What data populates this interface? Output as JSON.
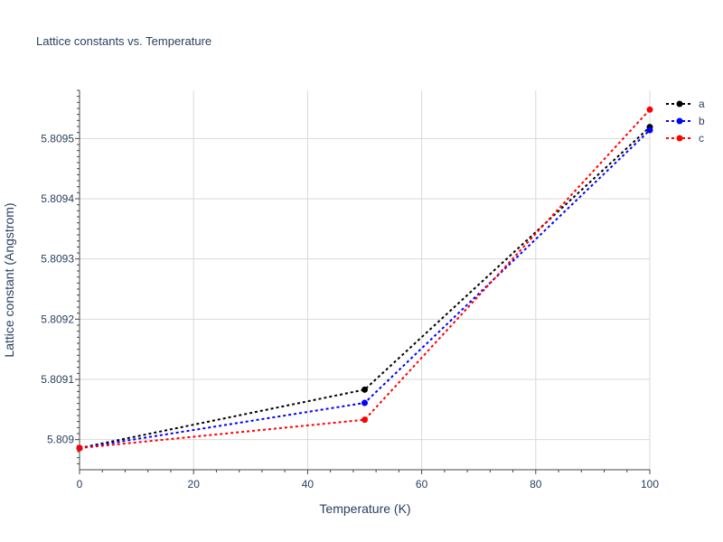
{
  "chart_data": {
    "type": "line",
    "title": "Lattice constants vs. Temperature",
    "xlabel": "Temperature (K)",
    "ylabel": "Lattice constant (Angstrom)",
    "x": [
      0,
      50,
      100
    ],
    "xlim": [
      0,
      100
    ],
    "ylim": [
      5.80895,
      5.80958
    ],
    "xticks": [
      0,
      20,
      40,
      60,
      80,
      100
    ],
    "xtick_labels": [
      "0",
      "20",
      "40",
      "60",
      "80",
      "100"
    ],
    "yticks": [
      5.809,
      5.8091,
      5.8092,
      5.8093,
      5.8094,
      5.8095
    ],
    "ytick_labels": [
      "5.809",
      "5.8091",
      "5.8092",
      "5.8093",
      "5.8094",
      "5.8095"
    ],
    "grid": true,
    "legend_position": "top-right",
    "series": [
      {
        "name": "a",
        "color": "#000000",
        "values": [
          5.808986,
          5.809083,
          5.809519
        ]
      },
      {
        "name": "b",
        "color": "#0000ff",
        "values": [
          5.808986,
          5.809061,
          5.809514
        ]
      },
      {
        "name": "c",
        "color": "#ff0000",
        "values": [
          5.808986,
          5.809033,
          5.809548
        ]
      }
    ]
  }
}
